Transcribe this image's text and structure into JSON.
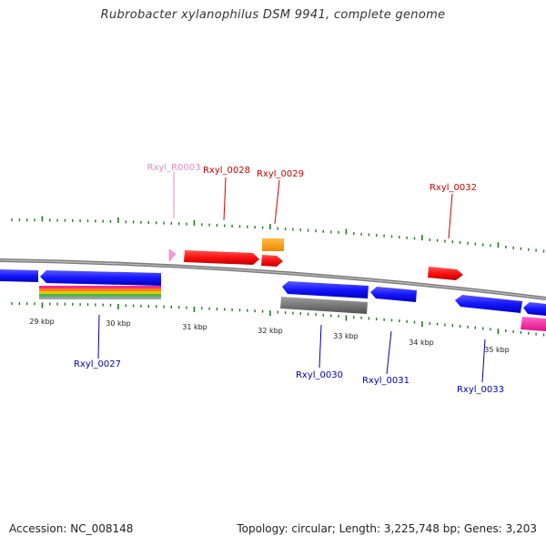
{
  "title": "Rubrobacter xylanophilus DSM 9941, complete genome",
  "footer": {
    "accession": "Accession: NC_008148",
    "summary": "Topology: circular; Length: 3,225,748 bp; Genes: 3,203"
  },
  "colors": {
    "forward_gene": "#ff1a1a",
    "reverse_gene": "#1a1aff",
    "rna": "#ff88cc",
    "orange_feature": "#ff9900",
    "gray_feature": "#707070",
    "backbone": "#888888",
    "ticks": "#227722",
    "label_forward": "#cc0000",
    "label_reverse": "#0000aa",
    "label_rna": "#ee88bb"
  },
  "scale_labels": [
    "29 kbp",
    "30 kbp",
    "31 kbp",
    "32 kbp",
    "33 kbp",
    "34 kbp",
    "35 kbp"
  ],
  "gene_labels": {
    "forward": [
      "Rxyl_R0003",
      "Rxyl_0028",
      "Rxyl_0029",
      "Rxyl_0032"
    ],
    "reverse": [
      "Rxyl_0027",
      "Rxyl_0030",
      "Rxyl_0031",
      "Rxyl_0033"
    ]
  }
}
